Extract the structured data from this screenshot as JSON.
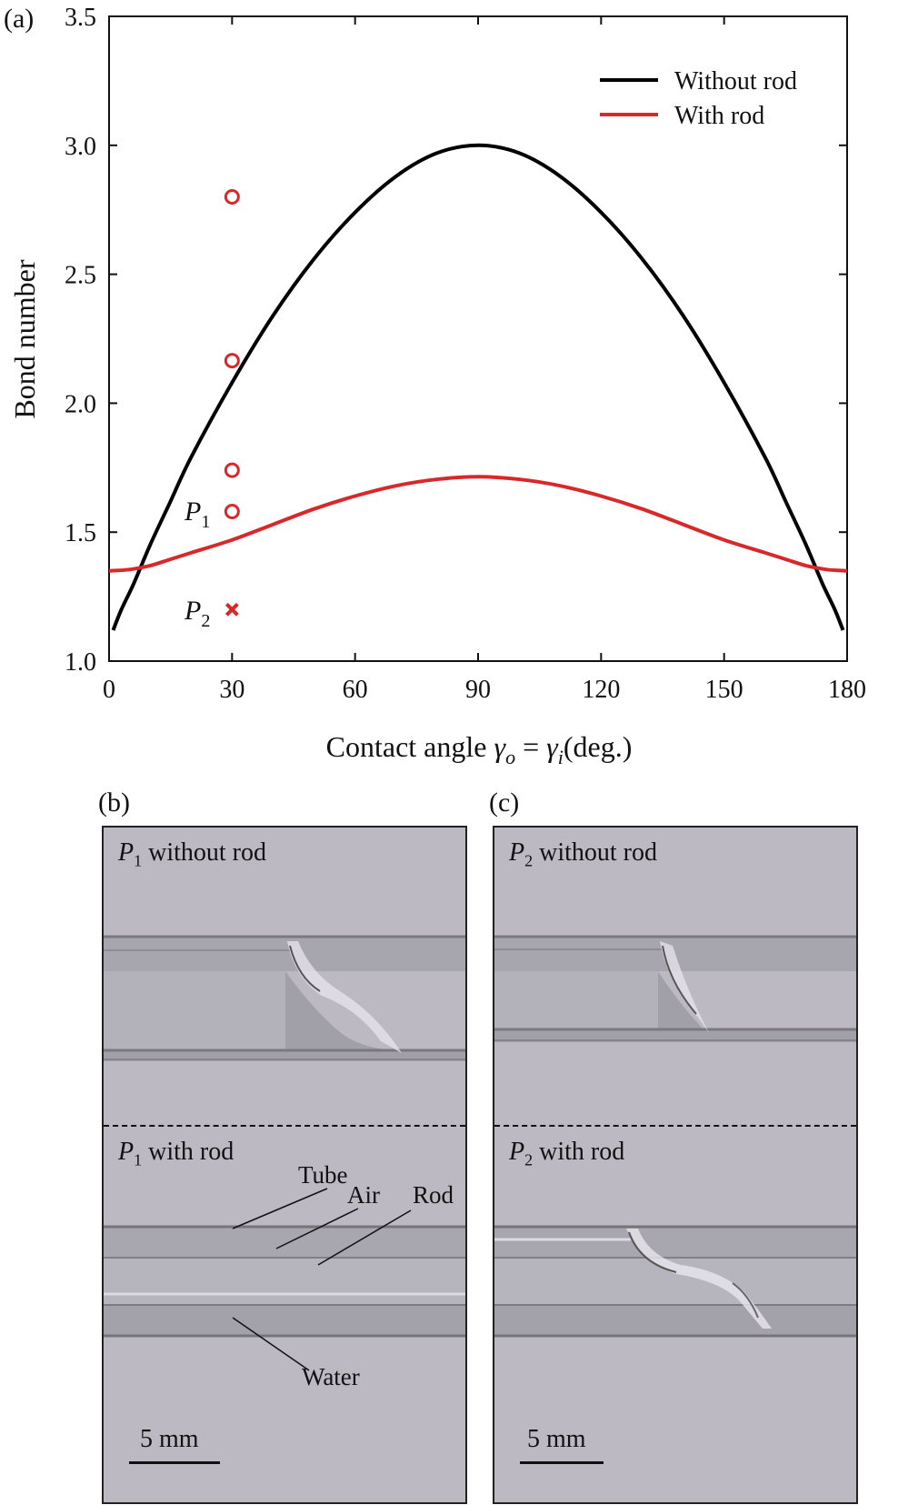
{
  "panel_a": {
    "label": "(a)",
    "legend": {
      "items": [
        {
          "label": "Without rod",
          "color": "#000000"
        },
        {
          "label": "With rod",
          "color": "#d8292a"
        }
      ]
    },
    "point_labels": {
      "p1_base": "P",
      "p1_sub": "1",
      "p2_base": "P",
      "p2_sub": "2"
    }
  },
  "chart_data": {
    "type": "line",
    "title": "",
    "ylabel": "Bond number",
    "xlabel_parts": {
      "prefix": "Contact angle ",
      "go": "γ",
      "go_sub": "o",
      "eq": " = ",
      "gi": "γ",
      "gi_sub": "i",
      "suffix": "(deg.)"
    },
    "xlim": [
      0,
      180
    ],
    "ylim": [
      1.0,
      3.5
    ],
    "xticks": [
      0,
      30,
      60,
      90,
      120,
      150,
      180
    ],
    "yticks": [
      "1.0",
      "1.5",
      "2.0",
      "2.5",
      "3.0",
      "3.5"
    ],
    "legend_position": "top-right",
    "grid": false,
    "series": [
      {
        "name": "Without rod",
        "color": "#000000",
        "x": [
          1,
          3,
          6,
          10,
          15,
          20,
          30,
          40,
          50,
          60,
          70,
          80,
          90,
          100,
          110,
          120,
          130,
          140,
          150,
          160,
          165,
          170,
          174,
          177,
          179
        ],
        "y": [
          1.12,
          1.2,
          1.3,
          1.45,
          1.62,
          1.79,
          2.08,
          2.34,
          2.56,
          2.74,
          2.88,
          2.97,
          3.0,
          2.97,
          2.88,
          2.74,
          2.56,
          2.34,
          2.08,
          1.79,
          1.62,
          1.45,
          1.3,
          1.2,
          1.12
        ]
      },
      {
        "name": "With rod",
        "color": "#d8292a",
        "x": [
          0,
          5,
          10,
          15,
          20,
          30,
          40,
          50,
          60,
          70,
          80,
          90,
          100,
          110,
          120,
          130,
          140,
          150,
          160,
          165,
          170,
          175,
          180
        ],
        "y": [
          1.35,
          1.355,
          1.37,
          1.395,
          1.42,
          1.47,
          1.53,
          1.59,
          1.64,
          1.68,
          1.705,
          1.715,
          1.705,
          1.68,
          1.64,
          1.59,
          1.53,
          1.47,
          1.42,
          1.395,
          1.37,
          1.355,
          1.35
        ]
      }
    ],
    "markers": [
      {
        "type": "circle",
        "x": 30,
        "y": 2.8,
        "color": "#d8292a"
      },
      {
        "type": "circle",
        "x": 30,
        "y": 2.165,
        "color": "#d8292a"
      },
      {
        "type": "circle",
        "x": 30,
        "y": 1.74,
        "color": "#d8292a"
      },
      {
        "type": "circle",
        "x": 30,
        "y": 1.58,
        "color": "#d8292a",
        "label": "P1"
      },
      {
        "type": "cross",
        "x": 30,
        "y": 1.2,
        "color": "#d8292a",
        "label": "P2"
      }
    ]
  },
  "panel_b": {
    "label": "(b)",
    "top_title": {
      "base": "P",
      "sub": "1",
      "text": " without rod"
    },
    "bottom_title": {
      "base": "P",
      "sub": "1",
      "text": " with rod"
    },
    "annotations": {
      "tube": "Tube",
      "air": "Air",
      "rod": "Rod",
      "water": "Water"
    },
    "scalebar": "5 mm"
  },
  "panel_c": {
    "label": "(c)",
    "top_title": {
      "base": "P",
      "sub": "2",
      "text": " without rod"
    },
    "bottom_title": {
      "base": "P",
      "sub": "2",
      "text": " with rod"
    },
    "scalebar": "5 mm"
  },
  "colors": {
    "photo_bg": "#bcb9c2",
    "tube_band": "#9c9aa3",
    "tube_edge": "#7a7880",
    "red": "#d8292a"
  }
}
